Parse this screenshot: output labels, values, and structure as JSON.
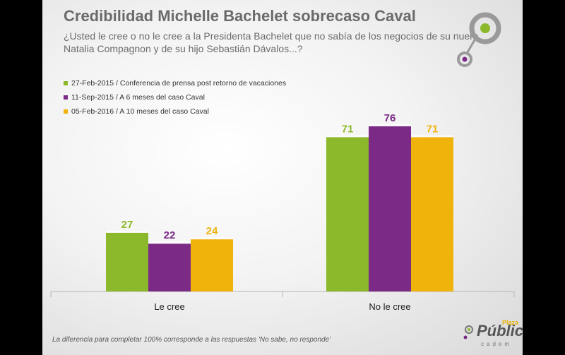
{
  "title": "Credibilidad Michelle Bachelet sobrecaso Caval",
  "subtitle": "¿Usted le cree o no le cree a la Presidenta Bachelet que no sabía de los negocios de su nuera Natalia Compagnon y de su hijo Sebastián Dávalos...?",
  "footnote": "La diferencia para completar 100% corresponde a las respuestas 'No sabe, no responde'",
  "brand": {
    "main": "Pública",
    "small": "Plaza",
    "sub": "cadem"
  },
  "colors": {
    "green": "#8cb92b",
    "purple": "#7b2b86",
    "gold": "#f0b30c",
    "logo_gray": "#9a9a9a"
  },
  "chart_data": {
    "type": "bar",
    "categories": [
      "Le cree",
      "No le cree"
    ],
    "series": [
      {
        "name": "27-Feb-2015 / Conferencia de prensa post retorno de vacaciones",
        "values": [
          27,
          71
        ],
        "color": "#8cb92b"
      },
      {
        "name": "11-Sep-2015 / A 6 meses del caso Caval",
        "values": [
          22,
          76
        ],
        "color": "#7b2b86"
      },
      {
        "name": "05-Feb-2016 / A 10 meses del caso Caval",
        "values": [
          24,
          71
        ],
        "color": "#f0b30c"
      }
    ],
    "ylim": [
      0,
      100
    ],
    "grid": false,
    "legend": "top-left",
    "data_labels": true
  }
}
